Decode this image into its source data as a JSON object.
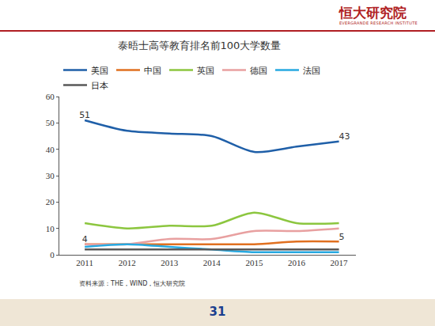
{
  "header": {
    "title": "恒大研究院",
    "subtitle": "EVERGRANDE RESEARCH INSTITUTE"
  },
  "footer": {
    "source": "资料来源：THE，WIND，恒大研究院",
    "page": "31"
  },
  "chart_data": {
    "type": "line",
    "title": "泰晤士高等教育排名前100大学数量",
    "x": [
      2011,
      2012,
      2013,
      2014,
      2015,
      2016,
      2017
    ],
    "xlim": [
      2010.4,
      2017.4
    ],
    "xticks": [
      2011,
      2012,
      2013,
      2014,
      2015,
      2016,
      2017
    ],
    "ylim": [
      0,
      60
    ],
    "yticks": [
      0,
      10,
      20,
      30,
      40,
      50,
      60
    ],
    "grid": false,
    "legend": "top",
    "line_style": "smooth",
    "series": [
      {
        "name": "美国",
        "color": "#1f5fa8",
        "values": [
          51,
          47,
          46,
          45,
          39,
          41,
          43
        ],
        "data_labels": true,
        "value_labels": [
          "51",
          null,
          null,
          null,
          null,
          null,
          "43"
        ]
      },
      {
        "name": "中国",
        "color": "#e07020",
        "values": [
          4,
          4,
          4,
          4,
          4,
          5,
          5
        ],
        "data_labels": true,
        "value_labels": [
          "4",
          null,
          null,
          null,
          null,
          null,
          "5"
        ]
      },
      {
        "name": "英国",
        "color": "#8cc63f",
        "values": [
          12,
          10,
          11,
          11,
          16,
          12,
          12
        ]
      },
      {
        "name": "德国",
        "color": "#e8a0a0",
        "values": [
          4,
          4,
          6,
          6,
          9,
          9,
          10
        ]
      },
      {
        "name": "法国",
        "color": "#27a9e1",
        "values": [
          3,
          4,
          3,
          2,
          1,
          1,
          1
        ]
      },
      {
        "name": "日本",
        "color": "#595959",
        "values": [
          2,
          2,
          2,
          2,
          2,
          2,
          2
        ]
      }
    ]
  }
}
